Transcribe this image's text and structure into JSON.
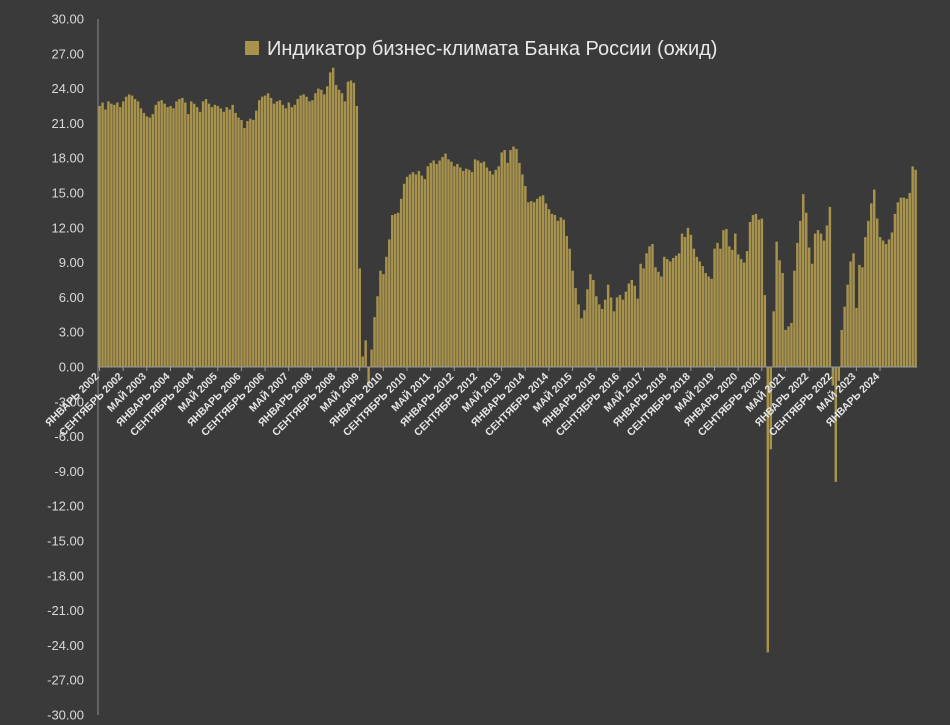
{
  "chart_data": {
    "type": "bar",
    "title": "",
    "xlabel": "",
    "ylabel": "",
    "ylim": [
      -30,
      30
    ],
    "y_ticks": [
      "30.00",
      "27.00",
      "24.00",
      "21.00",
      "18.00",
      "15.00",
      "12.00",
      "9.00",
      "6.00",
      "3.00",
      "0.00",
      "-3.00",
      "-6.00",
      "-9.00",
      "-12.00",
      "-15.00",
      "-18.00",
      "-21.00",
      "-24.00",
      "-27.00",
      "-30.00"
    ],
    "x_start": "2002-01",
    "x_end": "2024-05",
    "x_tick_labels": [
      {
        "label": "ЯНВАРЬ 2002",
        "month": "2002-01"
      },
      {
        "label": "СЕНТЯБРЬ 2002",
        "month": "2002-09"
      },
      {
        "label": "МАЙ 2003",
        "month": "2003-05"
      },
      {
        "label": "ЯНВАРЬ 2004",
        "month": "2004-01"
      },
      {
        "label": "СЕНТЯБРЬ 2004",
        "month": "2004-09"
      },
      {
        "label": "МАЙ 2005",
        "month": "2005-05"
      },
      {
        "label": "ЯНВАРЬ 2006",
        "month": "2006-01"
      },
      {
        "label": "СЕНТЯБРЬ 2006",
        "month": "2006-09"
      },
      {
        "label": "МАЙ 2007",
        "month": "2007-05"
      },
      {
        "label": "ЯНВАРЬ 2008",
        "month": "2008-01"
      },
      {
        "label": "СЕНТЯБРЬ 2008",
        "month": "2008-09"
      },
      {
        "label": "МАЙ 2009",
        "month": "2009-05"
      },
      {
        "label": "ЯНВАРЬ 2010",
        "month": "2010-01"
      },
      {
        "label": "СЕНТЯБРЬ 2010",
        "month": "2010-09"
      },
      {
        "label": "МАЙ 2011",
        "month": "2011-05"
      },
      {
        "label": "ЯНВАРЬ 2012",
        "month": "2012-01"
      },
      {
        "label": "СЕНТЯБРЬ 2012",
        "month": "2012-09"
      },
      {
        "label": "МАЙ 2013",
        "month": "2013-05"
      },
      {
        "label": "ЯНВАРЬ 2014",
        "month": "2014-01"
      },
      {
        "label": "СЕНТЯБРЬ 2014",
        "month": "2014-09"
      },
      {
        "label": "МАЙ 2015",
        "month": "2015-05"
      },
      {
        "label": "ЯНВАРЬ 2016",
        "month": "2016-01"
      },
      {
        "label": "СЕНТЯБРЬ 2016",
        "month": "2016-09"
      },
      {
        "label": "МАЙ 2017",
        "month": "2017-05"
      },
      {
        "label": "ЯНВАРЬ 2018",
        "month": "2018-01"
      },
      {
        "label": "СЕНТЯБРЬ 2018",
        "month": "2018-09"
      },
      {
        "label": "МАЙ 2019",
        "month": "2019-05"
      },
      {
        "label": "ЯНВАРЬ 2020",
        "month": "2020-01"
      },
      {
        "label": "СЕНТЯБРЬ 2020",
        "month": "2020-09"
      },
      {
        "label": "МАЙ 2021",
        "month": "2021-05"
      },
      {
        "label": "ЯНВАРЬ 2022",
        "month": "2022-01"
      },
      {
        "label": "СЕНТЯБРЬ 2022",
        "month": "2022-09"
      },
      {
        "label": "МАЙ 2023",
        "month": "2023-05"
      },
      {
        "label": "ЯНВАРЬ 2024",
        "month": "2024-01"
      }
    ],
    "grid": false,
    "legend_position": "top-center",
    "series": [
      {
        "name": "Индикатор бизнес-климата Банка России (ожид)",
        "color": "#a8934d",
        "values": [
          22.5,
          22.8,
          22.2,
          22.9,
          22.7,
          22.6,
          22.8,
          22.4,
          22.9,
          23.3,
          23.5,
          23.4,
          23.1,
          22.9,
          22.3,
          21.9,
          21.6,
          21.5,
          21.8,
          22.6,
          22.9,
          23.0,
          22.7,
          22.4,
          22.5,
          22.3,
          22.9,
          23.1,
          23.2,
          22.8,
          21.8,
          22.9,
          22.7,
          22.4,
          22.0,
          22.9,
          23.1,
          22.7,
          22.4,
          22.6,
          22.5,
          22.3,
          22.0,
          22.4,
          22.2,
          22.6,
          21.9,
          21.5,
          21.3,
          20.6,
          21.2,
          21.4,
          21.3,
          22.1,
          23.0,
          23.3,
          23.4,
          23.6,
          23.2,
          22.7,
          22.9,
          23.0,
          22.6,
          22.3,
          22.8,
          22.4,
          22.6,
          23.1,
          23.4,
          23.5,
          23.3,
          22.9,
          23.0,
          23.6,
          24.0,
          23.9,
          23.5,
          24.2,
          25.4,
          25.8,
          24.3,
          23.9,
          23.6,
          22.9,
          24.6,
          24.7,
          24.5,
          22.5,
          8.5,
          0.9,
          2.3,
          -1.7,
          1.5,
          4.3,
          6.1,
          8.3,
          8.0,
          9.5,
          11.0,
          13.1,
          13.2,
          13.3,
          14.5,
          15.8,
          16.4,
          16.6,
          16.8,
          16.6,
          16.9,
          16.5,
          16.2,
          17.3,
          17.6,
          17.8,
          17.5,
          17.8,
          18.1,
          18.4,
          17.9,
          17.7,
          17.3,
          17.5,
          17.2,
          16.9,
          17.1,
          17.0,
          16.8,
          17.9,
          17.8,
          17.6,
          17.7,
          17.2,
          16.9,
          16.6,
          17.0,
          17.3,
          18.5,
          18.7,
          17.6,
          18.7,
          19.0,
          18.8,
          17.6,
          16.6,
          15.6,
          14.2,
          14.3,
          14.2,
          14.5,
          14.7,
          14.8,
          14.1,
          13.6,
          13.2,
          13.1,
          12.6,
          12.9,
          12.7,
          11.3,
          10.2,
          8.3,
          6.8,
          5.4,
          4.2,
          4.9,
          6.7,
          8.0,
          7.5,
          6.1,
          5.4,
          5.0,
          5.8,
          7.1,
          6.0,
          4.8,
          6.0,
          6.2,
          5.8,
          6.5,
          7.2,
          7.5,
          7.0,
          5.9,
          8.9,
          8.5,
          9.8,
          10.4,
          10.6,
          8.6,
          8.2,
          7.8,
          9.5,
          9.3,
          9.1,
          9.4,
          9.6,
          9.8,
          11.5,
          11.2,
          12.0,
          11.4,
          10.2,
          9.5,
          9.1,
          8.7,
          8.1,
          7.8,
          7.6,
          10.2,
          10.7,
          10.2,
          11.8,
          11.9,
          10.4,
          10.1,
          11.5,
          9.7,
          9.3,
          9.0,
          10.0,
          12.5,
          13.1,
          13.2,
          12.7,
          12.8,
          6.2,
          -24.6,
          -7.1,
          4.8,
          10.8,
          9.2,
          8.1,
          3.2,
          3.5,
          3.8,
          8.3,
          10.7,
          12.6,
          14.9,
          13.3,
          10.3,
          8.9,
          11.5,
          11.8,
          11.5,
          10.9,
          12.2,
          13.8,
          -1.6,
          -9.9,
          -1.2,
          3.2,
          5.2,
          7.1,
          9.1,
          9.8,
          5.1,
          8.8,
          8.6,
          11.2,
          12.6,
          14.1,
          15.3,
          12.8,
          11.2,
          10.9,
          10.6,
          11.0,
          11.6,
          13.2,
          14.2,
          14.6,
          14.6,
          14.5,
          15.0,
          17.3,
          17.0
        ]
      }
    ]
  }
}
